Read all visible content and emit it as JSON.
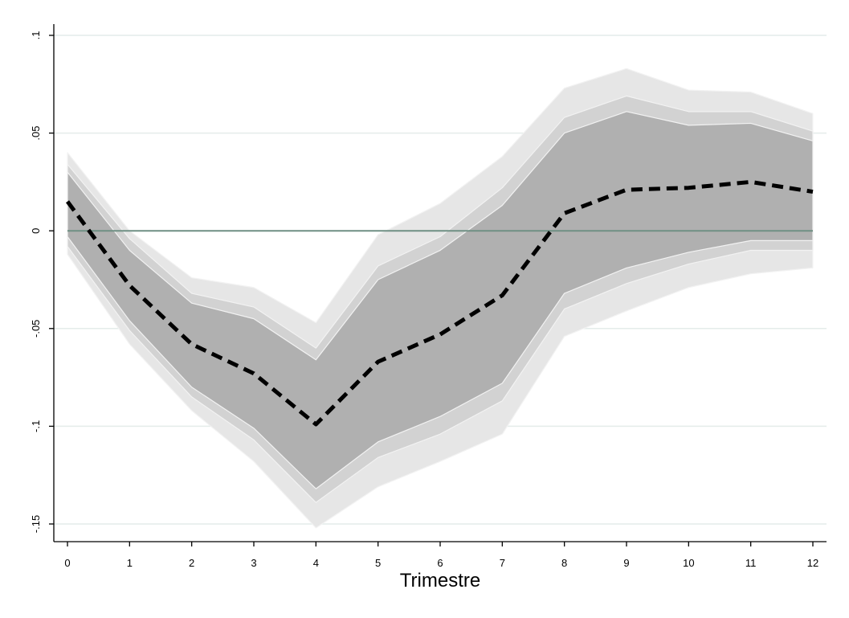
{
  "chart_data": {
    "type": "area",
    "title": "",
    "xlabel": "Trimestre",
    "ylabel": "",
    "x": [
      0,
      1,
      2,
      3,
      4,
      5,
      6,
      7,
      8,
      9,
      10,
      11,
      12
    ],
    "xticks": [
      "0",
      "1",
      "2",
      "3",
      "4",
      "5",
      "6",
      "7",
      "8",
      "9",
      "10",
      "11",
      "12"
    ],
    "yticks": [
      {
        "value": 0.1,
        "label": ".1"
      },
      {
        "value": 0.05,
        "label": ".05"
      },
      {
        "value": 0,
        "label": "0"
      },
      {
        "value": -0.05,
        "label": "-.05"
      },
      {
        "value": -0.1,
        "label": "-.1"
      },
      {
        "value": -0.15,
        "label": "-.15"
      }
    ],
    "xlim": [
      0,
      12
    ],
    "ylim": [
      -0.16,
      0.1
    ],
    "grid": "horizontal",
    "zero_line": 0,
    "series": [
      {
        "values": [
          0.015,
          -0.028,
          -0.058,
          -0.073,
          -0.099,
          -0.067,
          -0.053,
          -0.033,
          0.009,
          0.021,
          0.022,
          0.025,
          0.02
        ]
      }
    ],
    "bands": [
      {
        "lower": [
          -0.012,
          -0.058,
          -0.092,
          -0.118,
          -0.152,
          -0.131,
          -0.118,
          -0.104,
          -0.054,
          -0.041,
          -0.029,
          -0.022,
          -0.019
        ],
        "upper": [
          0.04,
          0.0,
          -0.024,
          -0.029,
          -0.047,
          -0.002,
          0.014,
          0.038,
          0.073,
          0.083,
          0.072,
          0.071,
          0.06
        ]
      },
      {
        "lower": [
          -0.008,
          -0.051,
          -0.085,
          -0.107,
          -0.139,
          -0.116,
          -0.104,
          -0.087,
          -0.04,
          -0.027,
          -0.017,
          -0.01,
          -0.01
        ],
        "upper": [
          0.034,
          -0.004,
          -0.032,
          -0.039,
          -0.06,
          -0.018,
          -0.003,
          0.022,
          0.058,
          0.069,
          0.061,
          0.061,
          0.051
        ]
      },
      {
        "lower": [
          -0.003,
          -0.046,
          -0.08,
          -0.101,
          -0.132,
          -0.108,
          -0.095,
          -0.078,
          -0.032,
          -0.019,
          -0.011,
          -0.005,
          -0.005
        ],
        "upper": [
          0.03,
          -0.01,
          -0.037,
          -0.045,
          -0.066,
          -0.025,
          -0.01,
          0.013,
          0.05,
          0.061,
          0.054,
          0.055,
          0.046
        ]
      }
    ],
    "colors": {
      "band_outer": "#e6e6e6",
      "band_middle": "#d2d2d2",
      "band_inner": "#b0b0b0",
      "line": "#000000",
      "zero_line": "#6f8f84",
      "grid": "#e4ecea",
      "axis": "#000000"
    }
  }
}
